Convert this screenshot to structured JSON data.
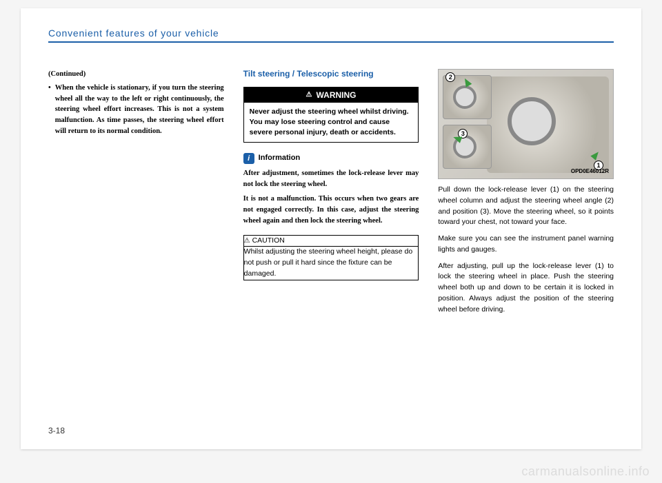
{
  "header": {
    "title": "Convenient features of your vehicle"
  },
  "pageNumber": "3-18",
  "watermark": "carmanualsonline.info",
  "col1": {
    "continued": "(Continued)",
    "bullet": "When the vehicle is stationary, if you turn the steering wheel all the way to the left or right continuously, the steering wheel effort increases. This is not a system malfunction. As time passes, the steering wheel effort will return to its normal condition."
  },
  "col2": {
    "sectionTitle": "Tilt steering / Telescopic steering",
    "warning": {
      "label": "WARNING",
      "body": "Never adjust the steering wheel whilst driving. You may lose steering control and cause severe personal injury, death or accidents."
    },
    "info": {
      "icon": "i",
      "label": "Information",
      "p1": "After adjustment, sometimes the lock-release lever may not lock the steering wheel.",
      "p2": "It is not a malfunction. This occurs when two gears are not engaged correctly. In this case, adjust the steering wheel again and then lock the steering wheel."
    },
    "caution": {
      "label": "CAUTION",
      "body": "Whilst adjusting the steering wheel height, please do not push or pull it hard since the fixture can be damaged."
    }
  },
  "col3": {
    "figure": {
      "label": "OPD0E46012R",
      "markers": {
        "1": "1",
        "2": "2",
        "3": "3"
      }
    },
    "p1": "Pull down the lock-release lever (1) on the steering wheel column and adjust the steering wheel angle (2) and position (3). Move the steering wheel, so it points toward your chest, not toward your face.",
    "p2": "Make sure you can see the instrument panel warning lights and gauges.",
    "p3": "After adjusting, pull up the lock-release lever (1) to lock the steering wheel in place. Push the steering wheel both up and down to be certain it is locked in position. Always adjust the position of the steering wheel before driving."
  }
}
